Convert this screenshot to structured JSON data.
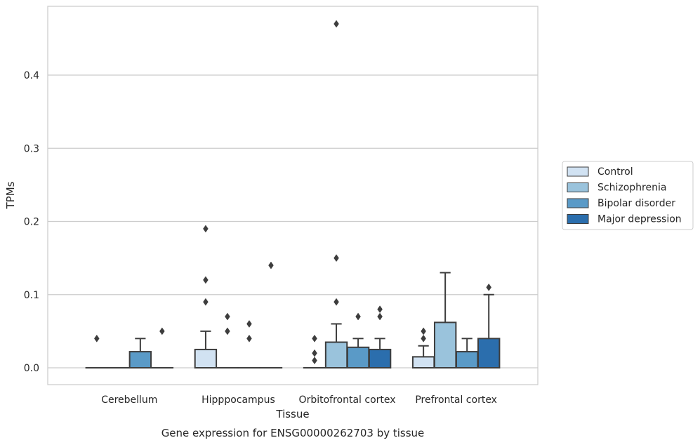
{
  "chart_data": {
    "type": "box",
    "title": "",
    "caption": "Gene expression for ENSG00000262703 by tissue",
    "xlabel": "Tissue",
    "ylabel": "TPMs",
    "ylim": [
      -0.023,
      0.495
    ],
    "yticks": [
      0.0,
      0.1,
      0.2,
      0.3,
      0.4
    ],
    "ytick_labels": [
      "0.0",
      "0.1",
      "0.2",
      "0.3",
      "0.4"
    ],
    "grid": "horizontal",
    "legend_position": "right",
    "categories": [
      "Cerebellum",
      "Hipppocampus",
      "Orbitofrontal cortex",
      "Prefrontal cortex"
    ],
    "series": [
      {
        "name": "Control",
        "color": "#d1e2f2",
        "boxes": [
          {
            "q1": 0,
            "median": 0,
            "q3": 0,
            "whisker_low": 0,
            "whisker_high": 0,
            "outliers": [
              0.04
            ]
          },
          {
            "q1": 0,
            "median": 0,
            "q3": 0.025,
            "whisker_low": 0,
            "whisker_high": 0.05,
            "outliers": [
              0.09,
              0.12,
              0.19
            ]
          },
          {
            "q1": 0,
            "median": 0,
            "q3": 0,
            "whisker_low": 0,
            "whisker_high": 0,
            "outliers": [
              0.01,
              0.02,
              0.04
            ]
          },
          {
            "q1": 0,
            "median": 0,
            "q3": 0.015,
            "whisker_low": 0,
            "whisker_high": 0.03,
            "outliers": [
              0.04,
              0.05
            ]
          }
        ]
      },
      {
        "name": "Schizophrenia",
        "color": "#9ac3dc",
        "boxes": [
          {
            "q1": 0,
            "median": 0,
            "q3": 0,
            "whisker_low": 0,
            "whisker_high": 0,
            "outliers": []
          },
          {
            "q1": 0,
            "median": 0,
            "q3": 0,
            "whisker_low": 0,
            "whisker_high": 0,
            "outliers": [
              0.05,
              0.07
            ]
          },
          {
            "q1": 0,
            "median": 0,
            "q3": 0.035,
            "whisker_low": 0,
            "whisker_high": 0.06,
            "outliers": [
              0.09,
              0.15,
              0.47
            ]
          },
          {
            "q1": 0,
            "median": 0,
            "q3": 0.062,
            "whisker_low": 0,
            "whisker_high": 0.13,
            "outliers": []
          }
        ]
      },
      {
        "name": "Bipolar disorder",
        "color": "#5a9ac7",
        "boxes": [
          {
            "q1": 0,
            "median": 0,
            "q3": 0.022,
            "whisker_low": 0,
            "whisker_high": 0.04,
            "outliers": []
          },
          {
            "q1": 0,
            "median": 0,
            "q3": 0,
            "whisker_low": 0,
            "whisker_high": 0,
            "outliers": [
              0.04,
              0.06
            ]
          },
          {
            "q1": 0,
            "median": 0,
            "q3": 0.028,
            "whisker_low": 0,
            "whisker_high": 0.04,
            "outliers": [
              0.07
            ]
          },
          {
            "q1": 0,
            "median": 0,
            "q3": 0.022,
            "whisker_low": 0,
            "whisker_high": 0.04,
            "outliers": []
          }
        ]
      },
      {
        "name": "Major depression",
        "color": "#2b6ead",
        "boxes": [
          {
            "q1": 0,
            "median": 0,
            "q3": 0,
            "whisker_low": 0,
            "whisker_high": 0,
            "outliers": [
              0.05
            ]
          },
          {
            "q1": 0,
            "median": 0,
            "q3": 0,
            "whisker_low": 0,
            "whisker_high": 0,
            "outliers": [
              0.14
            ]
          },
          {
            "q1": 0,
            "median": 0,
            "q3": 0.025,
            "whisker_low": 0,
            "whisker_high": 0.04,
            "outliers": [
              0.07,
              0.08
            ]
          },
          {
            "q1": 0,
            "median": 0,
            "q3": 0.04,
            "whisker_low": 0,
            "whisker_high": 0.1,
            "outliers": [
              0.11
            ]
          }
        ]
      }
    ]
  }
}
